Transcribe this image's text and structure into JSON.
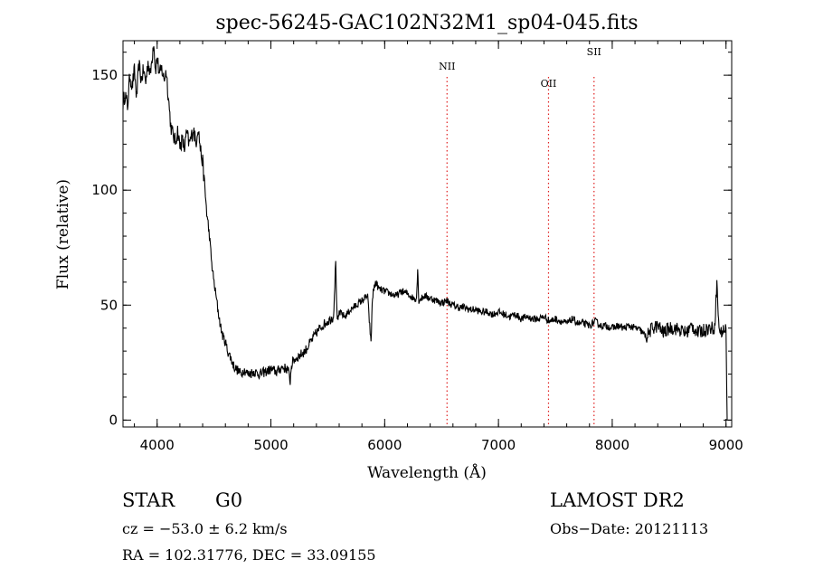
{
  "chart_data": {
    "type": "line",
    "title": "spec-56245-GAC102N32M1_sp04-045.fits",
    "xlabel": "Wavelength (Å)",
    "ylabel": "Flux (relative)",
    "xlim": [
      3700,
      9050
    ],
    "ylim": [
      -3,
      165
    ],
    "xticks": [
      4000,
      5000,
      6000,
      7000,
      8000,
      9000
    ],
    "yticks": [
      0,
      50,
      100,
      150
    ],
    "x_minor_step": 200,
    "y_minor_step": 10,
    "grid": false,
    "line_color": "#000000",
    "lines": [
      {
        "label": "NII",
        "x": 6548,
        "color": "#e02020"
      },
      {
        "label": "OII",
        "x": 7440,
        "color": "#e02020"
      },
      {
        "label": "SII",
        "x": 7840,
        "color": "#e02020"
      }
    ],
    "series": [
      {
        "x": [
          3700,
          3720,
          3740,
          3760,
          3780,
          3800,
          3820,
          3840,
          3860,
          3880,
          3900,
          3920,
          3940,
          3960,
          3970,
          3985,
          4000,
          4020,
          4040,
          4060,
          4080,
          4100,
          4120,
          4140,
          4160,
          4180,
          4200,
          4220,
          4240,
          4260,
          4280,
          4300,
          4320,
          4340,
          4360,
          4380,
          4400,
          4420,
          4440,
          4460,
          4480,
          4500,
          4520,
          4540,
          4560,
          4580,
          4600,
          4620,
          4640,
          4660,
          4680,
          4700,
          4720,
          4740,
          4760,
          4780,
          4800,
          4850,
          4900,
          4950,
          5000,
          5050,
          5100,
          5150,
          5170,
          5180,
          5200,
          5250,
          5300,
          5350,
          5400,
          5450,
          5500,
          5550,
          5570,
          5580,
          5590,
          5600,
          5650,
          5700,
          5750,
          5800,
          5850,
          5880,
          5890,
          5900,
          5920,
          5950,
          6000,
          6050,
          6100,
          6150,
          6200,
          6250,
          6280,
          6290,
          6300,
          6350,
          6400,
          6450,
          6500,
          6550,
          6563,
          6600,
          6650,
          6700,
          6750,
          6800,
          6850,
          6900,
          6950,
          7000,
          7050,
          7100,
          7150,
          7200,
          7250,
          7300,
          7350,
          7400,
          7450,
          7500,
          7550,
          7600,
          7650,
          7700,
          7750,
          7800,
          7850,
          7900,
          7950,
          8000,
          8050,
          8100,
          8150,
          8200,
          8250,
          8300,
          8350,
          8400,
          8450,
          8500,
          8550,
          8600,
          8650,
          8700,
          8750,
          8800,
          8850,
          8900,
          8920,
          8935,
          8950,
          8980,
          9000,
          9010
        ],
        "values": [
          138,
          142,
          136,
          150,
          145,
          152,
          140,
          155,
          148,
          152,
          147,
          156,
          150,
          160,
          165,
          152,
          158,
          150,
          153,
          148,
          152,
          140,
          128,
          124,
          121,
          126,
          119,
          122,
          118,
          125,
          120,
          123,
          127,
          120,
          128,
          118,
          112,
          100,
          88,
          80,
          68,
          60,
          53,
          46,
          40,
          36,
          34,
          30,
          28,
          25,
          23,
          22,
          21,
          20,
          22,
          21,
          20,
          21,
          20,
          21,
          22,
          21,
          23,
          22,
          17,
          24,
          26,
          28,
          30,
          34,
          38,
          41,
          43,
          45,
          69,
          46,
          42,
          47,
          45,
          48,
          50,
          52,
          54,
          33,
          51,
          56,
          60,
          57,
          56,
          55,
          54,
          56,
          55,
          53,
          53,
          66,
          52,
          54,
          53,
          52,
          51,
          52,
          51,
          50,
          49,
          49,
          48,
          48,
          47,
          47,
          46,
          47,
          46,
          45,
          46,
          44,
          45,
          44,
          44,
          45,
          43,
          44,
          43,
          42,
          44,
          42,
          42,
          41,
          43,
          41,
          41,
          40,
          41,
          40,
          41,
          40,
          39,
          36,
          40,
          41,
          38,
          40,
          40,
          39,
          38,
          41,
          38,
          39,
          40,
          40,
          60,
          42,
          38,
          39,
          40,
          0
        ]
      }
    ]
  },
  "info": {
    "class": "STAR",
    "subclass": "G0",
    "survey": "LAMOST DR2",
    "cz": "cz = −53.0 ± 6.2 km/s",
    "obs_date": "Obs−Date: 20121113",
    "coords": "RA = 102.31776, DEC =  33.09155"
  }
}
